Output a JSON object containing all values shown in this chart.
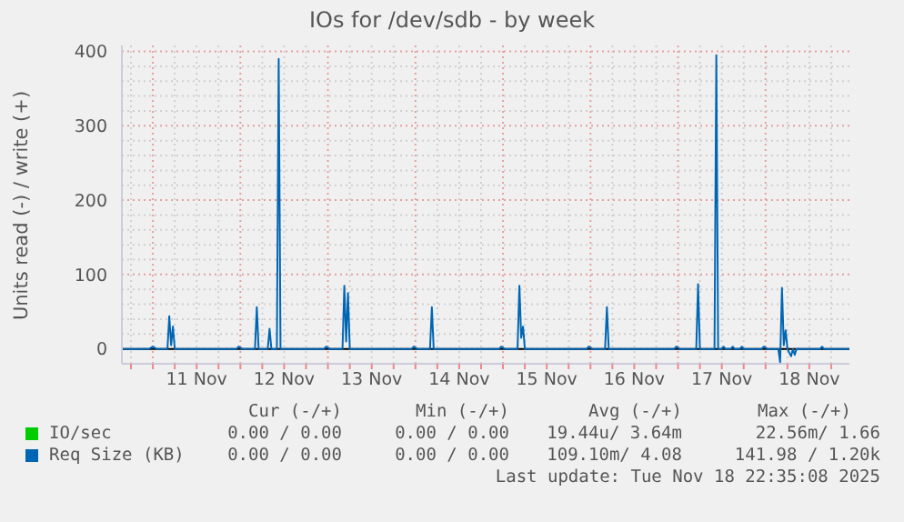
{
  "chart_data": {
    "type": "line",
    "title": "IOs for /dev/sdb - by week",
    "ylabel": "Units read (-) / write (+)",
    "xlim": [
      "2025-11-10T15:30",
      "2025-11-18T23:00"
    ],
    "ylim": [
      -20,
      408
    ],
    "xticks": [
      {
        "value": "2025-11-10T18:00",
        "label": null
      },
      {
        "value": "2025-11-11T00:00",
        "label": null
      },
      {
        "value": "2025-11-11T06:00",
        "label": null
      },
      {
        "value": "2025-11-11T12:00",
        "label": "11 Nov"
      },
      {
        "value": "2025-11-11T18:00",
        "label": null
      },
      {
        "value": "2025-11-12T00:00",
        "label": null
      },
      {
        "value": "2025-11-12T06:00",
        "label": null
      },
      {
        "value": "2025-11-12T12:00",
        "label": "12 Nov"
      },
      {
        "value": "2025-11-12T18:00",
        "label": null
      },
      {
        "value": "2025-11-13T00:00",
        "label": null
      },
      {
        "value": "2025-11-13T06:00",
        "label": null
      },
      {
        "value": "2025-11-13T12:00",
        "label": "13 Nov"
      },
      {
        "value": "2025-11-13T18:00",
        "label": null
      },
      {
        "value": "2025-11-14T00:00",
        "label": null
      },
      {
        "value": "2025-11-14T06:00",
        "label": null
      },
      {
        "value": "2025-11-14T12:00",
        "label": "14 Nov"
      },
      {
        "value": "2025-11-14T18:00",
        "label": null
      },
      {
        "value": "2025-11-15T00:00",
        "label": null
      },
      {
        "value": "2025-11-15T06:00",
        "label": null
      },
      {
        "value": "2025-11-15T12:00",
        "label": "15 Nov"
      },
      {
        "value": "2025-11-15T18:00",
        "label": null
      },
      {
        "value": "2025-11-16T00:00",
        "label": null
      },
      {
        "value": "2025-11-16T06:00",
        "label": null
      },
      {
        "value": "2025-11-16T12:00",
        "label": "16 Nov"
      },
      {
        "value": "2025-11-16T18:00",
        "label": null
      },
      {
        "value": "2025-11-17T00:00",
        "label": null
      },
      {
        "value": "2025-11-17T06:00",
        "label": null
      },
      {
        "value": "2025-11-17T12:00",
        "label": "17 Nov"
      },
      {
        "value": "2025-11-17T18:00",
        "label": null
      },
      {
        "value": "2025-11-18T00:00",
        "label": null
      },
      {
        "value": "2025-11-18T06:00",
        "label": null
      },
      {
        "value": "2025-11-18T12:00",
        "label": "18 Nov"
      },
      {
        "value": "2025-11-18T18:00",
        "label": null
      }
    ],
    "yticks": [
      0,
      {
        "value": 20,
        "label": null
      },
      {
        "value": 40,
        "label": null
      },
      {
        "value": 60,
        "label": null
      },
      {
        "value": 80,
        "label": null
      },
      100,
      {
        "value": 120,
        "label": null
      },
      {
        "value": 140,
        "label": null
      },
      {
        "value": 160,
        "label": null
      },
      {
        "value": 180,
        "label": null
      },
      200,
      {
        "value": 220,
        "label": null
      },
      {
        "value": 240,
        "label": null
      },
      {
        "value": 260,
        "label": null
      },
      {
        "value": 280,
        "label": null
      },
      300,
      {
        "value": 320,
        "label": null
      },
      {
        "value": 340,
        "label": null
      },
      {
        "value": 360,
        "label": null
      },
      {
        "value": 380,
        "label": null
      },
      400
    ],
    "grid": true,
    "legend": "bottom",
    "marker": "none",
    "line_style": "solid",
    "ref_lines": [
      {
        "axis": "y",
        "value": 0,
        "label": null,
        "color": "#000000"
      }
    ],
    "series": [
      {
        "name": "IO/sec",
        "color": "#00cc00"
      },
      {
        "name": "Req Size (KB)",
        "color": "#0066b3",
        "x": [
          "2025-11-10T15:30",
          "2025-11-10T23:00",
          "2025-11-11T00:00",
          "2025-11-11T01:00",
          "2025-11-11T04:00",
          "2025-11-11T04:30",
          "2025-11-11T05:00",
          "2025-11-11T05:30",
          "2025-11-11T06:00",
          "2025-11-11T23:00",
          "2025-11-11T23:30",
          "2025-11-12T00:30",
          "2025-11-12T04:00",
          "2025-11-12T04:30",
          "2025-11-12T05:00",
          "2025-11-12T07:30",
          "2025-11-12T08:00",
          "2025-11-12T08:30",
          "2025-11-12T10:00",
          "2025-11-12T10:30",
          "2025-11-12T11:00",
          "2025-11-12T23:00",
          "2025-11-12T23:30",
          "2025-11-13T00:30",
          "2025-11-13T04:00",
          "2025-11-13T04:30",
          "2025-11-13T05:00",
          "2025-11-13T05:30",
          "2025-11-13T06:00",
          "2025-11-13T23:00",
          "2025-11-13T23:30",
          "2025-11-14T00:30",
          "2025-11-14T04:00",
          "2025-11-14T04:30",
          "2025-11-14T05:00",
          "2025-11-14T23:00",
          "2025-11-14T23:30",
          "2025-11-15T00:30",
          "2025-11-15T04:00",
          "2025-11-15T04:30",
          "2025-11-15T05:00",
          "2025-11-15T05:30",
          "2025-11-15T06:00",
          "2025-11-15T23:00",
          "2025-11-15T23:30",
          "2025-11-16T00:30",
          "2025-11-16T04:00",
          "2025-11-16T04:30",
          "2025-11-16T05:00",
          "2025-11-16T23:00",
          "2025-11-16T23:30",
          "2025-11-17T00:30",
          "2025-11-17T05:00",
          "2025-11-17T05:30",
          "2025-11-17T06:00",
          "2025-11-17T10:00",
          "2025-11-17T10:30",
          "2025-11-17T11:00",
          "2025-11-17T12:00",
          "2025-11-17T12:30",
          "2025-11-17T13:00",
          "2025-11-17T14:30",
          "2025-11-17T15:00",
          "2025-11-17T15:30",
          "2025-11-17T17:00",
          "2025-11-17T17:30",
          "2025-11-17T18:00",
          "2025-11-17T23:00",
          "2025-11-17T23:30",
          "2025-11-18T00:30",
          "2025-11-18T03:30",
          "2025-11-18T04:00",
          "2025-11-18T04:30",
          "2025-11-18T05:00",
          "2025-11-18T05:30",
          "2025-11-18T06:00",
          "2025-11-18T07:00",
          "2025-11-18T07:30",
          "2025-11-18T08:00",
          "2025-11-18T08:30",
          "2025-11-18T15:00",
          "2025-11-18T15:30",
          "2025-11-18T16:00",
          "2025-11-18T23:00"
        ],
        "values": [
          0,
          0,
          3,
          0,
          0,
          44,
          5,
          30,
          0,
          0,
          3,
          0,
          0,
          56,
          0,
          0,
          27,
          0,
          0,
          390,
          0,
          0,
          3,
          0,
          0,
          85,
          10,
          75,
          0,
          0,
          3,
          0,
          0,
          56,
          0,
          0,
          3,
          0,
          0,
          85,
          15,
          30,
          0,
          0,
          3,
          0,
          0,
          56,
          0,
          0,
          3,
          0,
          0,
          87,
          0,
          0,
          395,
          0,
          0,
          3,
          0,
          0,
          3,
          0,
          0,
          3,
          0,
          0,
          3,
          0,
          0,
          -18,
          82,
          5,
          25,
          0,
          -10,
          0,
          -8,
          0,
          0,
          3,
          0,
          0
        ]
      }
    ],
    "annotations": [
      "Cur (-/+)",
      "Min (-/+)",
      "Avg (-/+)",
      "Max (-/+)",
      "0.00 / 0.00",
      "0.00 / 0.00",
      "19.44u/ 3.64m",
      "22.56m/ 1.66",
      "0.00 / 0.00",
      "0.00 / 0.00",
      "109.10m/ 4.08",
      "141.98 / 1.20k",
      "Last update: Tue Nov 18 22:35:08 2025"
    ]
  }
}
